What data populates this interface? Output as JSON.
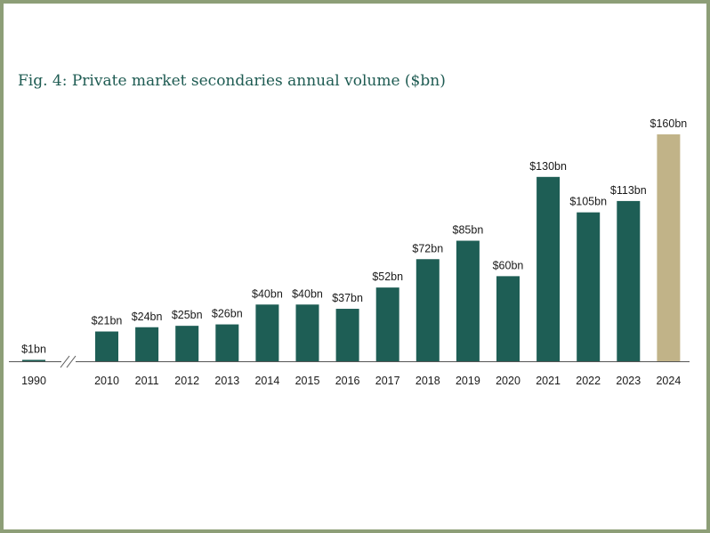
{
  "title": "Fig. 4: Private market secondaries annual volume ($bn)",
  "colors": {
    "border": "#8d9e77",
    "title": "#1e5b52",
    "bar": "#1e5e55",
    "highlight": "#c1b388",
    "axis": "#555555"
  },
  "chart_data": {
    "type": "bar",
    "title": "Fig. 4: Private market secondaries annual volume ($bn)",
    "xlabel": "",
    "ylabel": "",
    "ylim": [
      0,
      160
    ],
    "grid": false,
    "axis_break_after": "1990",
    "categories": [
      "1990",
      "2010",
      "2011",
      "2012",
      "2013",
      "2014",
      "2015",
      "2016",
      "2017",
      "2018",
      "2019",
      "2020",
      "2021",
      "2022",
      "2023",
      "2024"
    ],
    "values": [
      1,
      21,
      24,
      25,
      26,
      40,
      40,
      37,
      52,
      72,
      85,
      60,
      130,
      105,
      113,
      160
    ],
    "labels": [
      "$1bn",
      "$21bn",
      "$24bn",
      "$25bn",
      "$26bn",
      "$40bn",
      "$40bn",
      "$37bn",
      "$52bn",
      "$72bn",
      "$85bn",
      "$60bn",
      "$130bn",
      "$105bn",
      "$113bn",
      "$160bn"
    ],
    "highlight_category": "2024"
  }
}
